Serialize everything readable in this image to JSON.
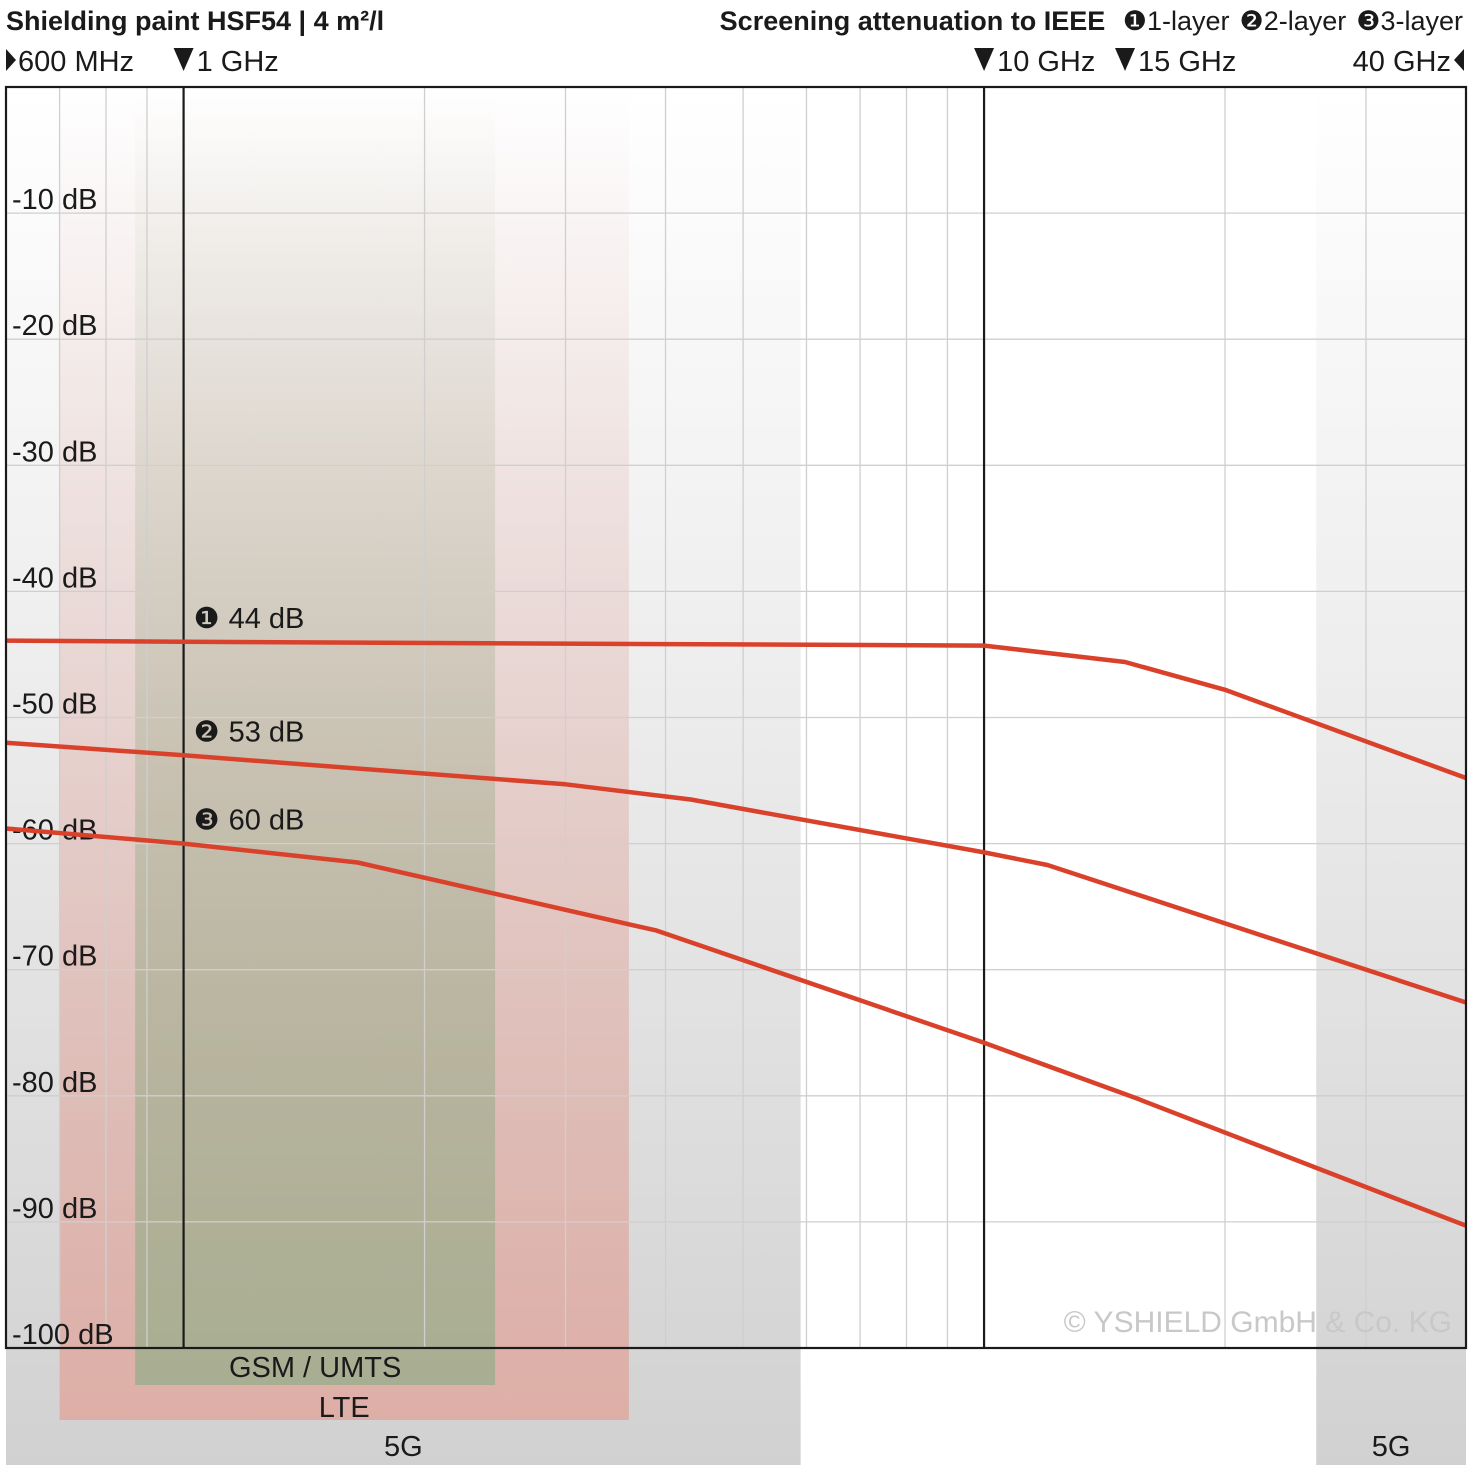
{
  "chart_data": {
    "type": "line",
    "title": "Shielding paint HSF54 | 4 m²/l",
    "subtitle": "Screening attenuation to IEEE",
    "log_x": true,
    "grid": true,
    "xlim": [
      0.6,
      40
    ],
    "ylim": [
      -100,
      0
    ],
    "xticks": [
      0.6,
      0.7,
      0.8,
      0.9,
      1,
      2,
      3,
      4,
      5,
      6,
      7,
      8,
      9,
      10,
      20,
      30,
      40
    ],
    "yticks": [
      {
        "value": -10,
        "label": "-10 dB"
      },
      {
        "value": -20,
        "label": "-20 dB"
      },
      {
        "value": -30,
        "label": "-30 dB"
      },
      {
        "value": -40,
        "label": "-40 dB"
      },
      {
        "value": -50,
        "label": "-50 dB"
      },
      {
        "value": -60,
        "label": "-60 dB"
      },
      {
        "value": -70,
        "label": "-70 dB"
      },
      {
        "value": -80,
        "label": "-80 dB"
      },
      {
        "value": -90,
        "label": "-90 dB"
      },
      {
        "value": -100,
        "label": "-100 dB"
      }
    ],
    "frequency_markers": [
      {
        "value": 0.6,
        "label": "600 MHz",
        "pointer": "right",
        "rule": false
      },
      {
        "value": 1,
        "label": "1 GHz",
        "pointer": "down",
        "rule": true
      },
      {
        "value": 10,
        "label": "10 GHz",
        "pointer": "down",
        "rule": true
      },
      {
        "value": 15,
        "label": "15 GHz",
        "pointer": "down",
        "rule": false
      },
      {
        "value": 40,
        "label": "40 GHz",
        "pointer": "left",
        "rule": false
      }
    ],
    "bands": [
      {
        "label": "5G",
        "from": 0.6,
        "to": 5.9,
        "color": "#c9c9c9"
      },
      {
        "label": "LTE",
        "from": 0.7,
        "to": 3.6,
        "color": "#dfa89f"
      },
      {
        "label": "GSM / UMTS",
        "from": 0.87,
        "to": 2.45,
        "color": "#9fae8e"
      },
      {
        "label": "5G",
        "from": 26,
        "to": 40,
        "color": "#c9c9c9"
      }
    ],
    "series": [
      {
        "name": "1-layer",
        "marker": "❶",
        "color": "#d9412b",
        "x": [
          0.6,
          1,
          10,
          15,
          20,
          40
        ],
        "values": [
          -43.9,
          -44,
          -44.3,
          -45.6,
          -47.8,
          -54.8
        ],
        "value_labels": [
          null,
          "44 dB",
          null,
          null,
          null,
          null
        ]
      },
      {
        "name": "2-layer",
        "marker": "❷",
        "color": "#d9412b",
        "x": [
          0.6,
          1,
          3,
          4.3,
          10,
          12,
          40
        ],
        "values": [
          -52,
          -53,
          -55.3,
          -56.5,
          -60.7,
          -61.7,
          -72.6
        ],
        "value_labels": [
          null,
          "53 dB",
          null,
          null,
          null,
          null,
          null
        ]
      },
      {
        "name": "3-layer",
        "marker": "❸",
        "color": "#d9412b",
        "x": [
          0.6,
          1,
          1.65,
          3.9,
          10,
          15.5,
          40
        ],
        "values": [
          -58.8,
          -60,
          -61.5,
          -66.9,
          -75.8,
          -80.2,
          -90.3
        ],
        "value_labels": [
          null,
          "60 dB",
          null,
          null,
          null,
          null,
          null
        ]
      }
    ],
    "copyright": "© YSHIELD GmbH & Co. KG"
  }
}
